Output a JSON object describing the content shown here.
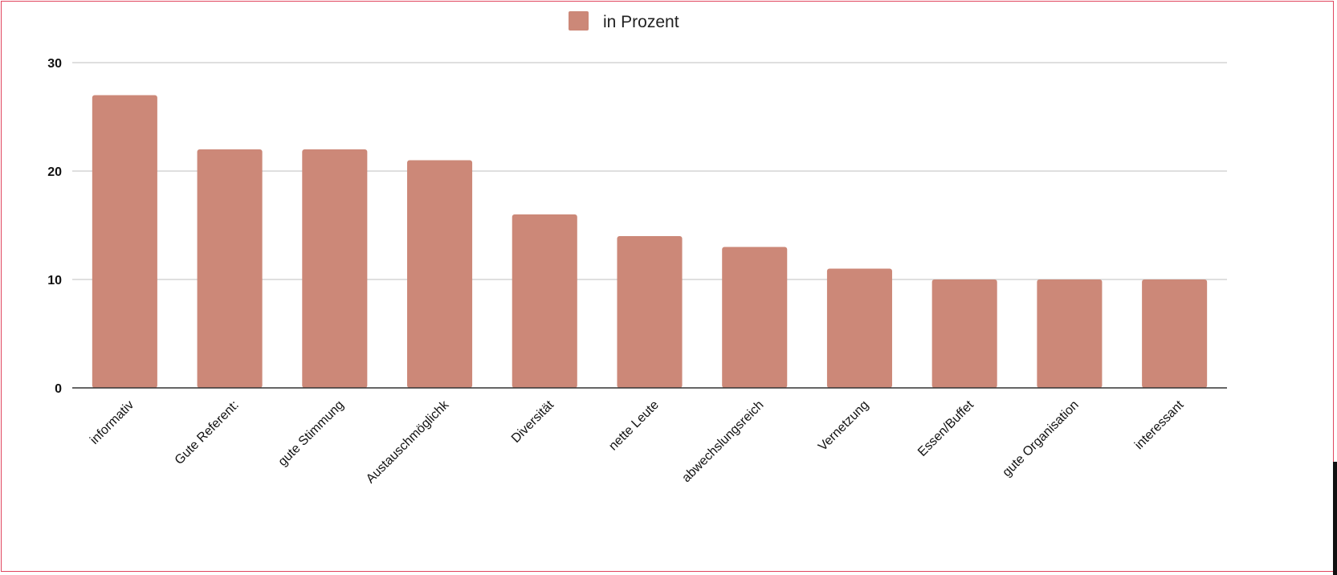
{
  "chart_data": {
    "type": "bar",
    "categories": [
      "informativ",
      "Gute Referent:",
      "gute Stimmung",
      "Austauschmöglichk",
      "Diversität",
      "nette Leute",
      "abwechslungsreich",
      "Vernetzung",
      "Essen/Buffet",
      "gute Organisation",
      "interessant"
    ],
    "series": [
      {
        "name": "in Prozent",
        "values": [
          27,
          22,
          22,
          21,
          16,
          14,
          13,
          11,
          10,
          10,
          10
        ]
      }
    ],
    "title": "",
    "xlabel": "",
    "ylabel": "",
    "ylim": [
      0,
      30
    ],
    "yticks": [
      0,
      10,
      20,
      30
    ],
    "grid": true,
    "legend_position": "top",
    "colors": {
      "bar": "#cc8878",
      "grid": "#cccccc",
      "axis": "#333333",
      "border": "#e0455e"
    }
  }
}
